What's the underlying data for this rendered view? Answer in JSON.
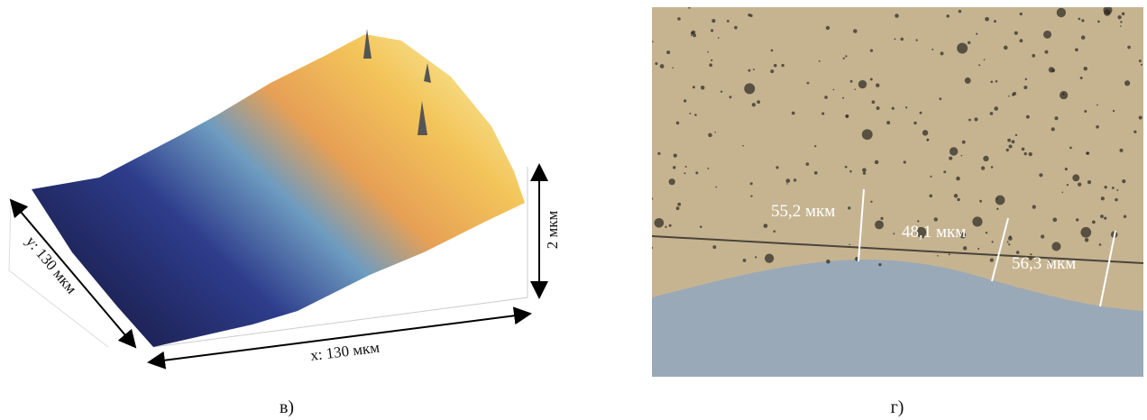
{
  "panels": [
    {
      "caption": "в)",
      "x_label": "x: 130 мкм",
      "y_label": "y: 130 мкм",
      "z_label": "2 мкм"
    },
    {
      "caption": "г)",
      "labels": [
        "55,2 мкм",
        "48,1 мкм",
        "56,3 мкм"
      ]
    }
  ]
}
